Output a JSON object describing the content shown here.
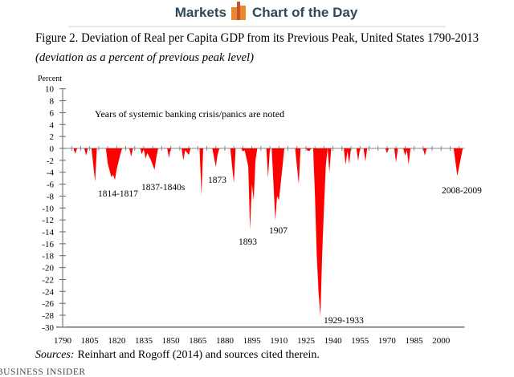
{
  "header": {
    "left_label": "Markets",
    "right_label": "Chart of the Day",
    "logo_icon": "bar-chart-icon",
    "brand_color": "#2f4858",
    "icon_colors": [
      "#e8892b",
      "#c9502a"
    ]
  },
  "footer": {
    "sources_label": "Sources:",
    "sources_text": "Reinhart and Rogoff (2014)  and sources cited therein.",
    "publisher": "BUSINESS INSIDER"
  },
  "chart_data": {
    "type": "area",
    "title": "Figure 2. Deviation of Real per Capita GDP from its Previous Peak, United States 1790-2013",
    "subtitle": "(deviation as a percent of previous peak level)",
    "ylabel": "Percent",
    "xlabel": "",
    "xlim": [
      1790,
      2013
    ],
    "ylim": [
      -30,
      10
    ],
    "yticks": [
      10,
      8,
      6,
      4,
      2,
      0,
      -2,
      -4,
      -6,
      -8,
      -10,
      -12,
      -14,
      -16,
      -18,
      -20,
      -22,
      -24,
      -26,
      -28,
      -30
    ],
    "xticks": [
      1790,
      1805,
      1820,
      1835,
      1850,
      1865,
      1880,
      1895,
      1910,
      1925,
      1940,
      1955,
      1970,
      1985,
      2000
    ],
    "fill_color": "#ff0000",
    "grid": false,
    "note": "Years of systemic banking crisis/panics are noted",
    "annotations": [
      "1814-1817",
      "1837-1840s",
      "1873",
      "1893",
      "1907",
      "1929-1933",
      "2008-2009"
    ],
    "series": [
      {
        "points": [
          [
            1790,
            0
          ],
          [
            1796,
            0
          ],
          [
            1797,
            -0.9
          ],
          [
            1798,
            0
          ],
          [
            1802,
            0
          ],
          [
            1803,
            -1.2
          ],
          [
            1804,
            0
          ],
          [
            1806,
            0
          ],
          [
            1808,
            -5.6
          ],
          [
            1809,
            0
          ],
          [
            1814,
            0
          ],
          [
            1815,
            -2.5
          ],
          [
            1817,
            -4.8
          ],
          [
            1818,
            -4.4
          ],
          [
            1819,
            -5.3
          ],
          [
            1820,
            -3.5
          ],
          [
            1822,
            -1.0
          ],
          [
            1823,
            0
          ],
          [
            1827,
            0
          ],
          [
            1828,
            -1.4
          ],
          [
            1829,
            0
          ],
          [
            1833,
            0
          ],
          [
            1834,
            -1.0
          ],
          [
            1835,
            0
          ],
          [
            1836,
            -1.7
          ],
          [
            1837,
            -0.8
          ],
          [
            1839,
            -2.0
          ],
          [
            1841,
            -3.6
          ],
          [
            1842,
            -1.5
          ],
          [
            1843,
            0
          ],
          [
            1848,
            0
          ],
          [
            1849,
            -1.6
          ],
          [
            1850,
            0
          ],
          [
            1856,
            0
          ],
          [
            1857,
            -2.0
          ],
          [
            1858,
            -0.3
          ],
          [
            1860,
            -1.1
          ],
          [
            1861,
            0
          ],
          [
            1866,
            0
          ],
          [
            1867,
            -7.8
          ],
          [
            1868,
            0
          ],
          [
            1873,
            0
          ],
          [
            1874,
            -1.5
          ],
          [
            1875,
            -3.1
          ],
          [
            1876,
            -1.0
          ],
          [
            1877,
            0
          ],
          [
            1883,
            0
          ],
          [
            1885,
            -5.8
          ],
          [
            1886,
            0
          ],
          [
            1889,
            0
          ],
          [
            1890,
            -0.5
          ],
          [
            1891,
            -0.3
          ],
          [
            1893,
            -3.0
          ],
          [
            1894,
            -13.7
          ],
          [
            1895,
            -6.0
          ],
          [
            1896,
            -8.7
          ],
          [
            1897,
            -2.0
          ],
          [
            1898,
            0
          ],
          [
            1903,
            0
          ],
          [
            1904,
            -4.9
          ],
          [
            1905,
            0
          ],
          [
            1906,
            0
          ],
          [
            1908,
            -12.1
          ],
          [
            1909,
            -8.0
          ],
          [
            1910,
            -8.7
          ],
          [
            1912,
            -3.0
          ],
          [
            1913,
            0
          ],
          [
            1919,
            0
          ],
          [
            1921,
            -6.0
          ],
          [
            1922,
            0
          ],
          [
            1925,
            0
          ],
          [
            1926,
            -0.4
          ],
          [
            1927,
            -0.4
          ],
          [
            1928,
            0
          ],
          [
            1929,
            0
          ],
          [
            1930,
            -8
          ],
          [
            1931,
            -18
          ],
          [
            1932,
            -24
          ],
          [
            1933,
            -28.2
          ],
          [
            1934,
            -18
          ],
          [
            1935,
            -10
          ],
          [
            1936,
            -3
          ],
          [
            1937,
            0
          ],
          [
            1938,
            -4.0
          ],
          [
            1939,
            0
          ],
          [
            1946,
            0
          ],
          [
            1947,
            -2.7
          ],
          [
            1948,
            -0.5
          ],
          [
            1949,
            -2.6
          ],
          [
            1950,
            0
          ],
          [
            1953,
            0
          ],
          [
            1954,
            -2.1
          ],
          [
            1955,
            0
          ],
          [
            1957,
            0
          ],
          [
            1958,
            -2.2
          ],
          [
            1959,
            0
          ],
          [
            1969,
            0
          ],
          [
            1970,
            -0.8
          ],
          [
            1971,
            0
          ],
          [
            1974,
            0
          ],
          [
            1975,
            -2.4
          ],
          [
            1976,
            0
          ],
          [
            1979,
            0
          ],
          [
            1980,
            -1.2
          ],
          [
            1981,
            -0.3
          ],
          [
            1982,
            -2.7
          ],
          [
            1983,
            0
          ],
          [
            1990,
            0
          ],
          [
            1991,
            -1.2
          ],
          [
            1992,
            0
          ],
          [
            2007,
            0
          ],
          [
            2009,
            -4.6
          ],
          [
            2012,
            0
          ],
          [
            2013,
            0
          ]
        ]
      }
    ]
  }
}
